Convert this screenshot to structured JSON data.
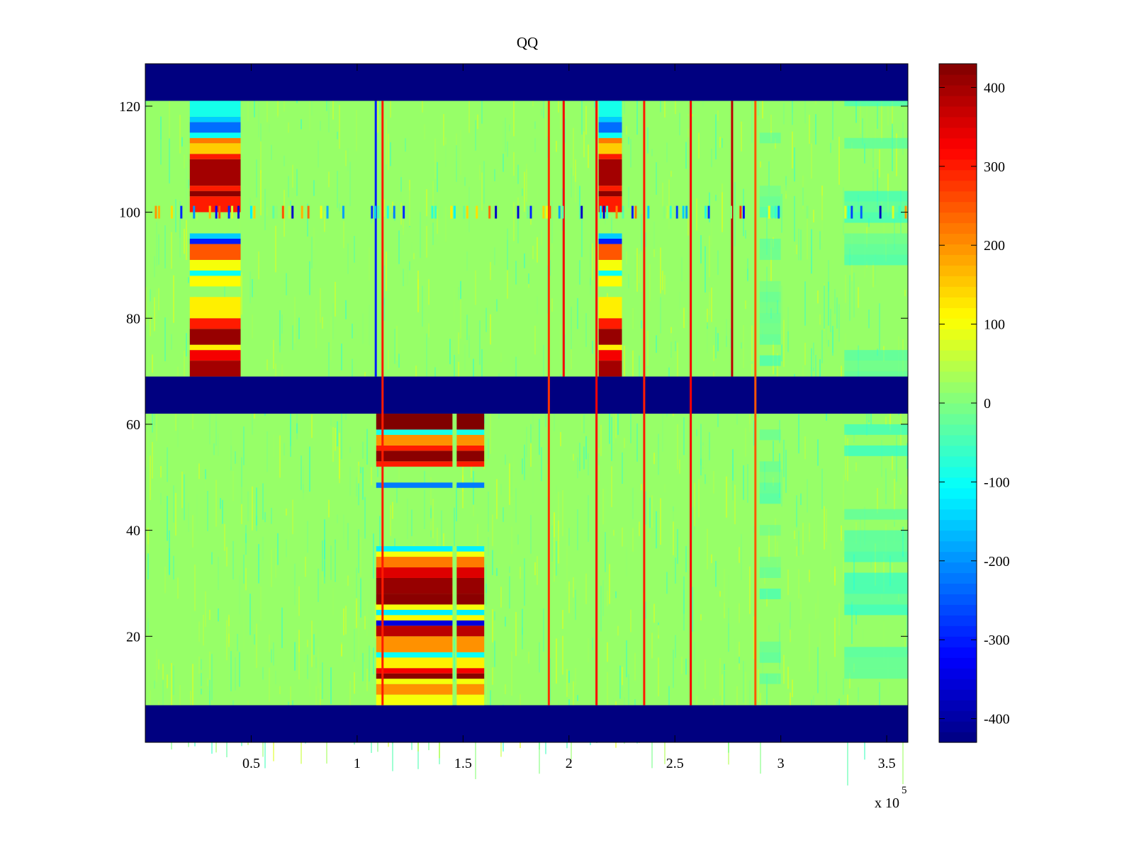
{
  "chart_data": {
    "type": "heatmap",
    "title": "QQ",
    "xlabel": "",
    "ylabel": "",
    "xlim": [
      0,
      360000
    ],
    "ylim": [
      0,
      128
    ],
    "x_ticks": [
      {
        "value": 50000,
        "label": "0.5"
      },
      {
        "value": 100000,
        "label": "1"
      },
      {
        "value": 150000,
        "label": "1.5"
      },
      {
        "value": 200000,
        "label": "2"
      },
      {
        "value": 250000,
        "label": "2.5"
      },
      {
        "value": 300000,
        "label": "3"
      },
      {
        "value": 350000,
        "label": "3.5"
      }
    ],
    "x_exponent": {
      "base": "x 10",
      "power": "5"
    },
    "y_ticks": [
      {
        "value": 20,
        "label": "20"
      },
      {
        "value": 40,
        "label": "40"
      },
      {
        "value": 60,
        "label": "60"
      },
      {
        "value": 80,
        "label": "80"
      },
      {
        "value": 100,
        "label": "100"
      },
      {
        "value": 120,
        "label": "120"
      }
    ],
    "colorbar": {
      "colormap": "jet",
      "limits": [
        -430,
        430
      ],
      "ticks": [
        {
          "value": 400,
          "label": "400"
        },
        {
          "value": 300,
          "label": "300"
        },
        {
          "value": 200,
          "label": "200"
        },
        {
          "value": 100,
          "label": "100"
        },
        {
          "value": 0,
          "label": "0"
        },
        {
          "value": -100,
          "label": "-100"
        },
        {
          "value": -200,
          "label": "-200"
        },
        {
          "value": -300,
          "label": "-300"
        },
        {
          "value": -400,
          "label": "-400"
        }
      ]
    },
    "background_value": 20,
    "uniform_rows": [
      {
        "y_range": [
          0,
          7
        ],
        "value": -430
      },
      {
        "y_range": [
          62,
          69
        ],
        "value": -430
      },
      {
        "y_range": [
          121,
          128
        ],
        "value": -430
      }
    ],
    "blocks": [
      {
        "x_range": [
          21000,
          45000
        ],
        "y_range": [
          69,
          121
        ],
        "rows": [
          {
            "y": [
              69,
              72
            ],
            "v": 400
          },
          {
            "y": [
              72,
              74
            ],
            "v": 330
          },
          {
            "y": [
              74,
              75
            ],
            "v": 120
          },
          {
            "y": [
              75,
              78
            ],
            "v": 410
          },
          {
            "y": [
              78,
              80
            ],
            "v": 300
          },
          {
            "y": [
              80,
              84
            ],
            "v": 120
          },
          {
            "y": [
              86,
              88
            ],
            "v": 110
          },
          {
            "y": [
              88,
              89
            ],
            "v": -100
          },
          {
            "y": [
              89,
              91
            ],
            "v": 100
          },
          {
            "y": [
              91,
              94
            ],
            "v": 250
          },
          {
            "y": [
              94,
              95
            ],
            "v": -300
          },
          {
            "y": [
              95,
              96
            ],
            "v": -150
          },
          {
            "y": [
              100,
              103
            ],
            "v": 300
          },
          {
            "y": [
              103,
              104
            ],
            "v": 420
          },
          {
            "y": [
              104,
              105
            ],
            "v": 300
          },
          {
            "y": [
              105,
              110
            ],
            "v": 400
          },
          {
            "y": [
              110,
              111
            ],
            "v": 300
          },
          {
            "y": [
              111,
              113
            ],
            "v": 150
          },
          {
            "y": [
              113,
              114
            ],
            "v": 220
          },
          {
            "y": [
              114,
              115
            ],
            "v": -100
          },
          {
            "y": [
              115,
              117
            ],
            "v": -230
          },
          {
            "y": [
              117,
              118
            ],
            "v": -150
          },
          {
            "y": [
              118,
              121
            ],
            "v": -90
          }
        ]
      },
      {
        "x_range": [
          214000,
          225000
        ],
        "y_range": [
          69,
          121
        ],
        "rows": [
          {
            "y": [
              69,
              72
            ],
            "v": 400
          },
          {
            "y": [
              72,
              74
            ],
            "v": 330
          },
          {
            "y": [
              74,
              75
            ],
            "v": 120
          },
          {
            "y": [
              75,
              78
            ],
            "v": 410
          },
          {
            "y": [
              78,
              80
            ],
            "v": 300
          },
          {
            "y": [
              80,
              84
            ],
            "v": 120
          },
          {
            "y": [
              86,
              88
            ],
            "v": 110
          },
          {
            "y": [
              88,
              89
            ],
            "v": -100
          },
          {
            "y": [
              89,
              91
            ],
            "v": 100
          },
          {
            "y": [
              91,
              94
            ],
            "v": 250
          },
          {
            "y": [
              94,
              95
            ],
            "v": -300
          },
          {
            "y": [
              95,
              96
            ],
            "v": -150
          },
          {
            "y": [
              100,
              103
            ],
            "v": 300
          },
          {
            "y": [
              103,
              104
            ],
            "v": 420
          },
          {
            "y": [
              104,
              105
            ],
            "v": 300
          },
          {
            "y": [
              105,
              110
            ],
            "v": 400
          },
          {
            "y": [
              110,
              111
            ],
            "v": 300
          },
          {
            "y": [
              111,
              113
            ],
            "v": 150
          },
          {
            "y": [
              113,
              114
            ],
            "v": 220
          },
          {
            "y": [
              114,
              115
            ],
            "v": -100
          },
          {
            "y": [
              115,
              117
            ],
            "v": -230
          },
          {
            "y": [
              117,
              118
            ],
            "v": -150
          },
          {
            "y": [
              118,
              121
            ],
            "v": -90
          }
        ]
      },
      {
        "x_range": [
          109000,
          145000
        ],
        "y_range": [
          7,
          62
        ],
        "rows": [
          {
            "y": [
              7,
              9
            ],
            "v": 100
          },
          {
            "y": [
              9,
              11
            ],
            "v": 200
          },
          {
            "y": [
              11,
              12
            ],
            "v": 100
          },
          {
            "y": [
              12,
              13
            ],
            "v": 420
          },
          {
            "y": [
              13,
              14
            ],
            "v": 330
          },
          {
            "y": [
              14,
              16
            ],
            "v": 120
          },
          {
            "y": [
              16,
              17
            ],
            "v": -100
          },
          {
            "y": [
              17,
              20
            ],
            "v": 200
          },
          {
            "y": [
              20,
              22
            ],
            "v": 380
          },
          {
            "y": [
              22,
              23
            ],
            "v": -350
          },
          {
            "y": [
              23,
              24
            ],
            "v": 110
          },
          {
            "y": [
              24,
              25
            ],
            "v": -120
          },
          {
            "y": [
              25,
              26
            ],
            "v": 100
          },
          {
            "y": [
              26,
              28
            ],
            "v": 420
          },
          {
            "y": [
              28,
              31
            ],
            "v": 410
          },
          {
            "y": [
              31,
              33
            ],
            "v": 350
          },
          {
            "y": [
              33,
              35
            ],
            "v": 220
          },
          {
            "y": [
              35,
              36
            ],
            "v": 100
          },
          {
            "y": [
              36,
              37
            ],
            "v": -120
          },
          {
            "y": [
              48,
              49
            ],
            "v": -220
          },
          {
            "y": [
              52,
              53
            ],
            "v": 300
          },
          {
            "y": [
              53,
              55
            ],
            "v": 420
          },
          {
            "y": [
              55,
              56
            ],
            "v": 300
          },
          {
            "y": [
              56,
              58
            ],
            "v": 200
          },
          {
            "y": [
              58,
              59
            ],
            "v": -90
          },
          {
            "y": [
              59,
              62
            ],
            "v": 430
          }
        ]
      },
      {
        "x_range": [
          147000,
          160000
        ],
        "y_range": [
          7,
          62
        ],
        "rows": [
          {
            "y": [
              7,
              9
            ],
            "v": 100
          },
          {
            "y": [
              9,
              11
            ],
            "v": 200
          },
          {
            "y": [
              11,
              12
            ],
            "v": 100
          },
          {
            "y": [
              12,
              13
            ],
            "v": 420
          },
          {
            "y": [
              13,
              14
            ],
            "v": 330
          },
          {
            "y": [
              14,
              16
            ],
            "v": 120
          },
          {
            "y": [
              16,
              17
            ],
            "v": -100
          },
          {
            "y": [
              17,
              20
            ],
            "v": 200
          },
          {
            "y": [
              20,
              22
            ],
            "v": 380
          },
          {
            "y": [
              22,
              23
            ],
            "v": -350
          },
          {
            "y": [
              23,
              24
            ],
            "v": 110
          },
          {
            "y": [
              24,
              25
            ],
            "v": -120
          },
          {
            "y": [
              25,
              26
            ],
            "v": 100
          },
          {
            "y": [
              26,
              28
            ],
            "v": 420
          },
          {
            "y": [
              28,
              31
            ],
            "v": 410
          },
          {
            "y": [
              31,
              33
            ],
            "v": 350
          },
          {
            "y": [
              33,
              35
            ],
            "v": 220
          },
          {
            "y": [
              35,
              36
            ],
            "v": 100
          },
          {
            "y": [
              36,
              37
            ],
            "v": -120
          },
          {
            "y": [
              48,
              49
            ],
            "v": -220
          },
          {
            "y": [
              52,
              53
            ],
            "v": 300
          },
          {
            "y": [
              53,
              55
            ],
            "v": 420
          },
          {
            "y": [
              55,
              56
            ],
            "v": 300
          },
          {
            "y": [
              56,
              58
            ],
            "v": 200
          },
          {
            "y": [
              58,
              59
            ],
            "v": -90
          },
          {
            "y": [
              59,
              62
            ],
            "v": 430
          }
        ]
      }
    ],
    "vertical_lines": [
      {
        "x": 108800,
        "y_range": [
          69,
          121
        ],
        "value": -300
      },
      {
        "x": 112000,
        "y_range": [
          7,
          121
        ],
        "value": 300
      },
      {
        "x": 190500,
        "y_range": [
          7,
          121
        ],
        "value": 280
      },
      {
        "x": 197500,
        "y_range": [
          69,
          121
        ],
        "value": 330
      },
      {
        "x": 213000,
        "y_range": [
          7,
          121
        ],
        "value": 320
      },
      {
        "x": 235500,
        "y_range": [
          7,
          121
        ],
        "value": 300
      },
      {
        "x": 257500,
        "y_range": [
          7,
          121
        ],
        "value": 330
      },
      {
        "x": 277000,
        "y_range": [
          69,
          121
        ],
        "value": 380
      },
      {
        "x": 288000,
        "y_range": [
          7,
          121
        ],
        "value": 250
      }
    ],
    "speckle_row": {
      "y": 100,
      "x_range": [
        0,
        360000
      ],
      "value_range": [
        -380,
        300
      ]
    },
    "faint_patches": [
      {
        "x_range": [
          290000,
          300000
        ],
        "y_range": [
          9,
          121
        ],
        "value": -40
      },
      {
        "x_range": [
          330000,
          360000
        ],
        "y_range": [
          12,
          121
        ],
        "value": -60
      }
    ]
  }
}
